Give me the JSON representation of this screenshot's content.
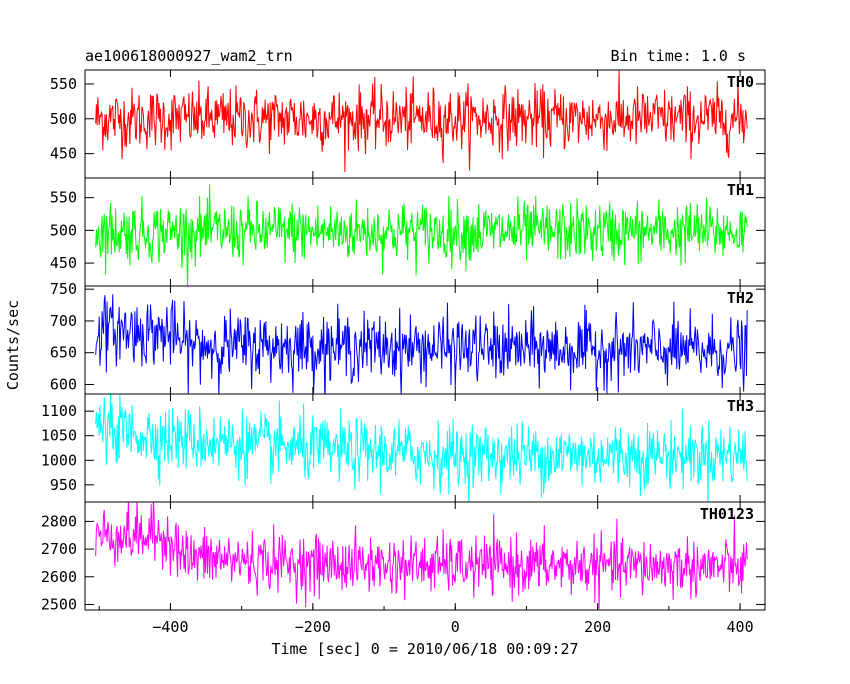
{
  "header": {
    "file_label": "ae100618000927_wam2_trn",
    "bin_label": "Bin time: 1.0 s"
  },
  "chart_data": {
    "type": "line",
    "ylabel": "Counts/sec",
    "xlabel": "Time [sec] 0 = 2010/06/18 00:09:27",
    "xlim": [
      -520,
      435
    ],
    "x_ticks": [
      -400,
      -200,
      0,
      200,
      400
    ],
    "x_tick_labels": [
      "−400",
      "−200",
      "0",
      "200",
      "400"
    ],
    "bin_seconds": 1.0,
    "data_range": [
      -505,
      410
    ],
    "panels": [
      {
        "name": "TH0",
        "color": "#ff0000",
        "ylim": [
          415,
          570
        ],
        "yticks": [
          450,
          500,
          550
        ],
        "yticklabels": [
          "450",
          "500",
          "550"
        ],
        "mean": 500,
        "noise": 22
      },
      {
        "name": "TH1",
        "color": "#00ff00",
        "ylim": [
          415,
          580
        ],
        "yticks": [
          450,
          500,
          550
        ],
        "yticklabels": [
          "450",
          "500",
          "550"
        ],
        "mean": 498,
        "noise": 23
      },
      {
        "name": "TH2",
        "color": "#0000ff",
        "ylim": [
          585,
          755
        ],
        "yticks": [
          600,
          650,
          700,
          750
        ],
        "yticklabels": [
          "600",
          "650",
          "700",
          "750"
        ],
        "mean": 655,
        "noise": 26,
        "trend": [
          [
            -505,
            688
          ],
          [
            -400,
            680
          ],
          [
            -380,
            662
          ],
          [
            410,
            652
          ]
        ]
      },
      {
        "name": "TH3",
        "color": "#00ffff",
        "ylim": [
          915,
          1135
        ],
        "yticks": [
          950,
          1000,
          1050,
          1100
        ],
        "yticklabels": [
          "950",
          "1000",
          "1050",
          "1100"
        ],
        "mean": 1020,
        "noise": 33,
        "trend": [
          [
            -505,
            1068
          ],
          [
            -400,
            1045
          ],
          [
            -200,
            1022
          ],
          [
            0,
            1010
          ],
          [
            410,
            1012
          ]
        ]
      },
      {
        "name": "TH0123",
        "color": "#ff00ff",
        "ylim": [
          2480,
          2870
        ],
        "yticks": [
          2500,
          2600,
          2700,
          2800
        ],
        "yticklabels": [
          "2500",
          "2600",
          "2700",
          "2800"
        ],
        "mean": 2640,
        "noise": 52,
        "trend": [
          [
            -505,
            2752
          ],
          [
            -400,
            2745
          ],
          [
            -380,
            2670
          ],
          [
            -200,
            2645
          ],
          [
            410,
            2635
          ]
        ]
      }
    ]
  }
}
